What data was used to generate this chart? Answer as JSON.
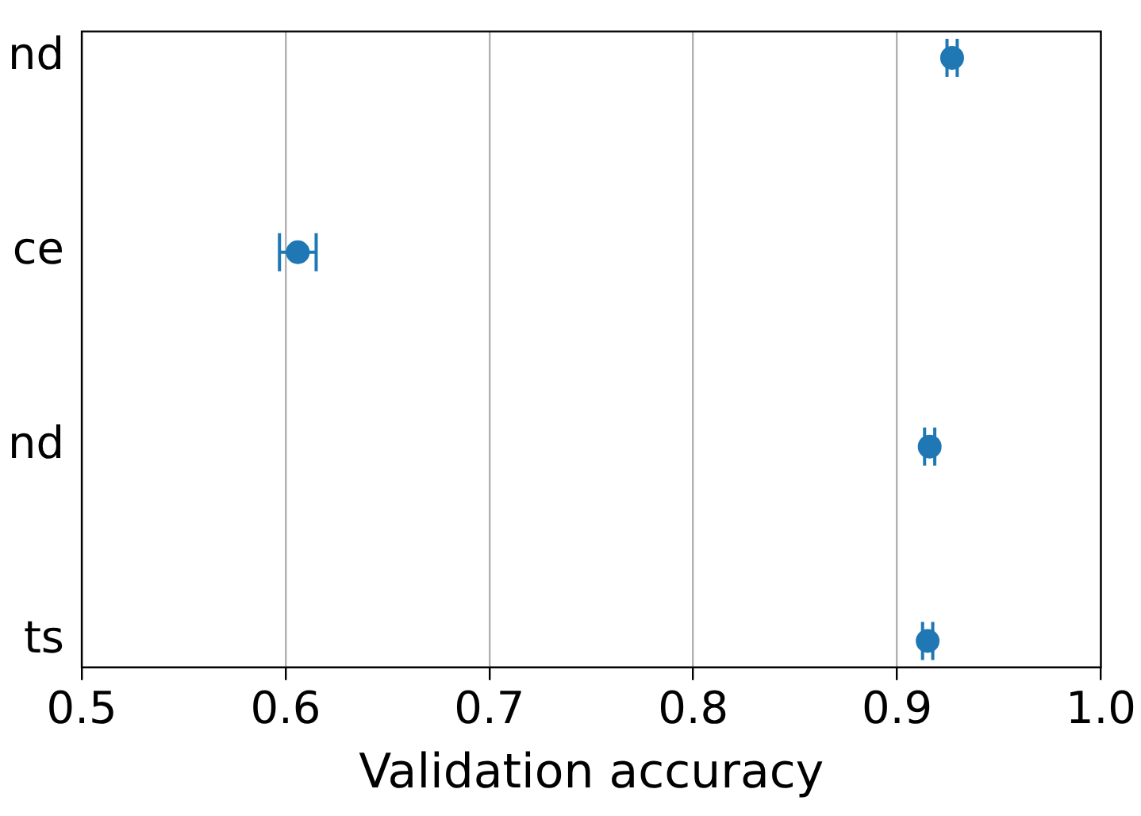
{
  "chart_data": {
    "type": "scatter",
    "orientation": "horizontal",
    "categories": [
      "nd",
      "ce",
      "nd",
      "ts"
    ],
    "values": [
      0.927,
      0.606,
      0.916,
      0.915
    ],
    "errors": [
      0.0025,
      0.009,
      0.0025,
      0.0025
    ],
    "color": "#1f77b4",
    "xlabel": "Validation accuracy",
    "xlim": [
      0.5,
      1.0
    ],
    "xticks": [
      0.5,
      0.6,
      0.7,
      0.8,
      0.9,
      {
        "value": 1.0,
        "label": "1.0"
      }
    ],
    "grid": "x",
    "marker": "circle"
  }
}
